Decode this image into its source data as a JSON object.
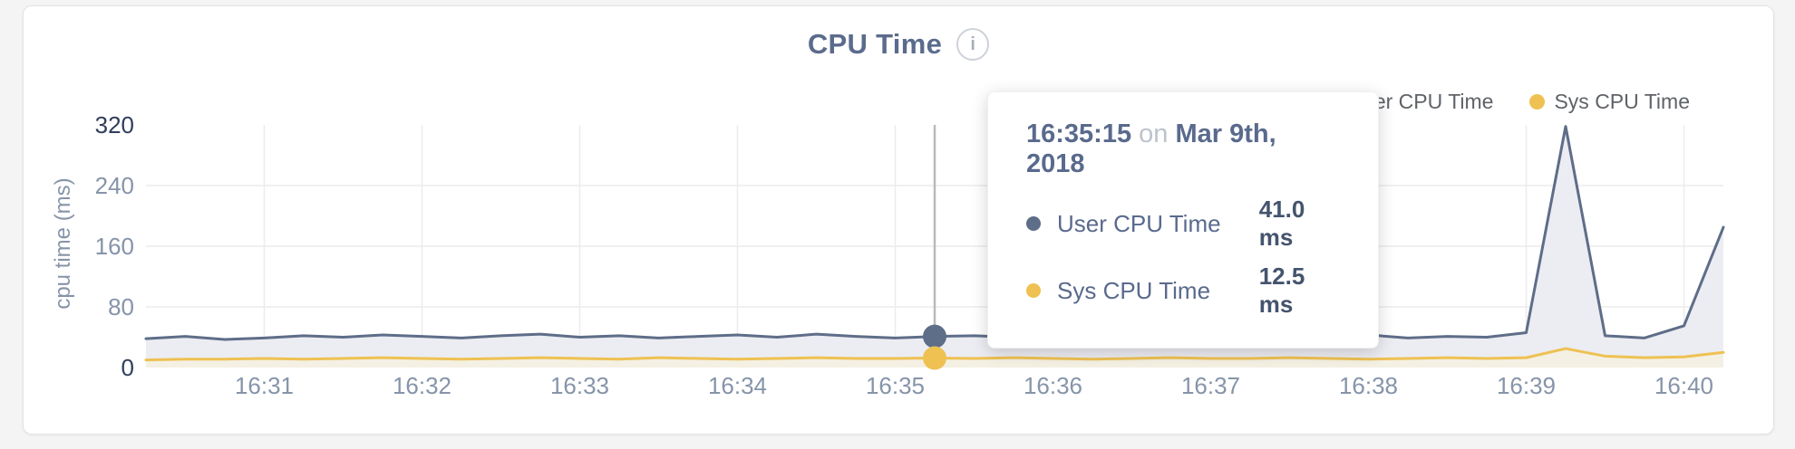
{
  "header": {
    "title": "CPU Time"
  },
  "legend": [
    {
      "label": "User CPU Time",
      "color": "#5e6d88"
    },
    {
      "label": "Sys CPU Time",
      "color": "#eec152"
    }
  ],
  "tooltip": {
    "time": "16:35:15",
    "connector": "on",
    "date": "Mar 9th, 2018",
    "rows": [
      {
        "label": "User CPU Time",
        "value": "41.0 ms",
        "color": "#5e6d88"
      },
      {
        "label": "Sys CPU Time",
        "value": "12.5 ms",
        "color": "#eec152"
      }
    ]
  },
  "chart_data": {
    "type": "area",
    "title": "CPU Time",
    "xlabel": "",
    "ylabel": "cpu time (ms)",
    "ylim": [
      0,
      320
    ],
    "yticks": [
      0,
      80,
      160,
      240,
      320
    ],
    "grid": true,
    "legend_position": "top-right",
    "x_start_time": "16:30:15",
    "x_interval_seconds": 15,
    "xticklabels": [
      "16:31",
      "16:32",
      "16:33",
      "16:34",
      "16:35",
      "16:36",
      "16:37",
      "16:38",
      "16:39",
      "16:40"
    ],
    "xtick_indices": [
      3,
      7,
      11,
      15,
      19,
      23,
      27,
      31,
      35,
      39
    ],
    "series": [
      {
        "name": "User CPU Time",
        "color": "#5e6d88",
        "fill": "#ecedf2",
        "values": [
          38,
          41,
          37,
          39,
          42,
          40,
          43,
          41,
          39,
          42,
          44,
          40,
          42,
          39,
          41,
          43,
          40,
          44,
          41,
          39,
          41,
          42,
          40,
          43,
          39,
          42,
          44,
          40,
          38,
          42,
          41,
          43,
          39,
          41,
          40,
          46,
          318,
          42,
          39,
          55,
          185
        ]
      },
      {
        "name": "Sys CPU Time",
        "color": "#eec152",
        "fill": "#f4f0e3",
        "values": [
          10,
          11,
          11,
          12,
          11,
          12,
          13,
          12,
          11,
          12,
          13,
          12,
          11,
          13,
          12,
          11,
          12,
          13,
          12,
          12,
          12.5,
          12,
          13,
          12,
          11,
          12,
          13,
          12,
          12,
          13,
          12,
          11,
          12,
          13,
          12,
          13,
          25,
          15,
          13,
          14,
          20
        ]
      }
    ],
    "hover": {
      "index": 20,
      "time": "16:35:15",
      "user_value_ms": 41.0,
      "sys_value_ms": 12.5
    },
    "colors": {
      "grid": "#ececec",
      "hover_line": "#b9b9b9",
      "tick_label": "#8694a9",
      "tick_label_dark": "#2f3e5c"
    }
  }
}
